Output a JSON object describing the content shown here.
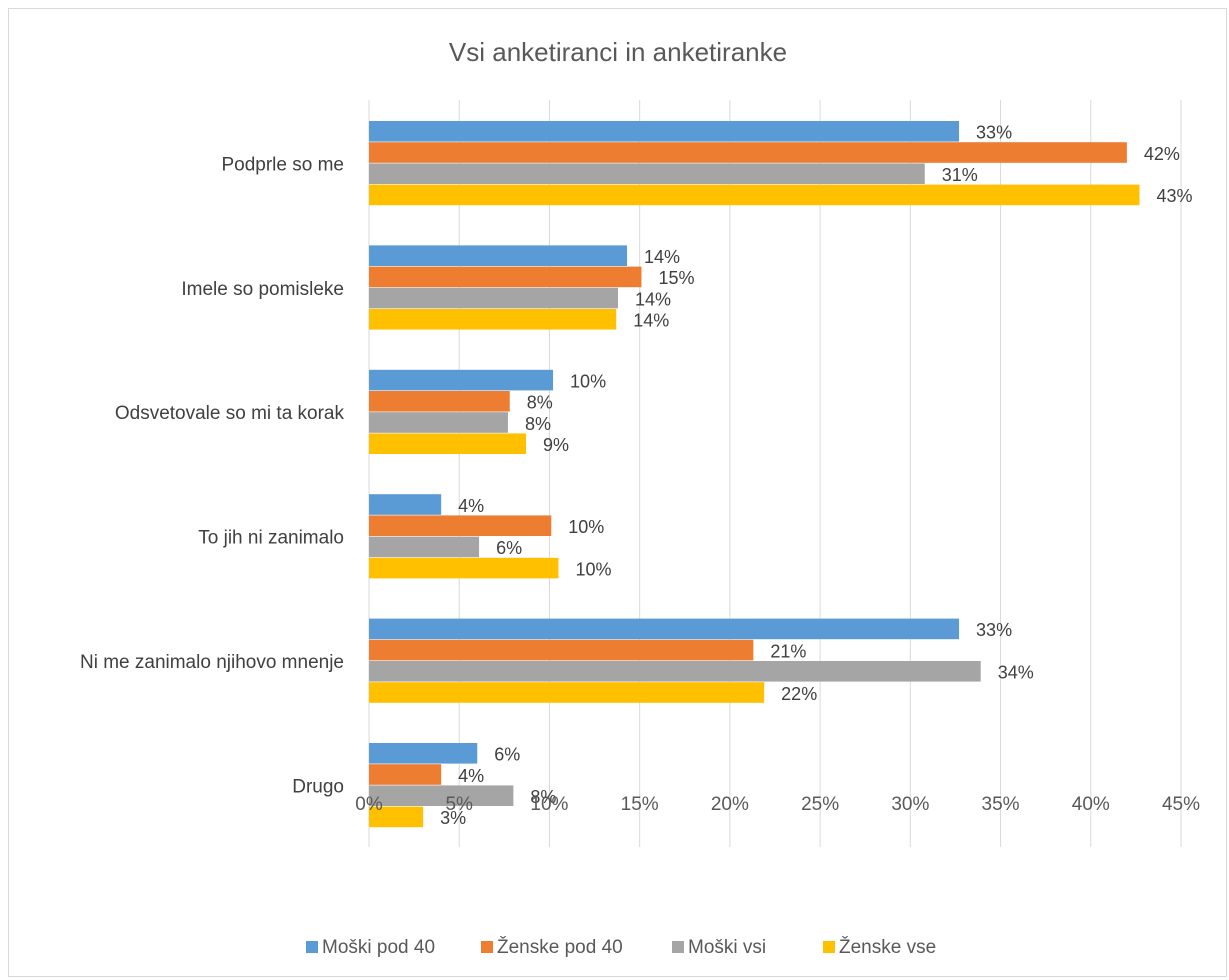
{
  "chart_data": {
    "type": "bar",
    "orientation": "horizontal",
    "title": "Vsi anketiranci in anketiranke",
    "categories": [
      "Podprle so me",
      "Imele so pomisleke",
      "Odsvetovale so mi ta korak",
      "To jih ni zanimalo",
      "Ni me zanimalo njihovo mnenje",
      "Drugo"
    ],
    "series": [
      {
        "name": "Moški pod 40",
        "color": "#5b9bd5",
        "values": [
          32.7,
          14.3,
          10.2,
          4.0,
          32.7,
          6.0
        ],
        "labels": [
          "33%",
          "14%",
          "10%",
          "4%",
          "33%",
          "6%"
        ]
      },
      {
        "name": "Ženske pod 40",
        "color": "#ed7d31",
        "values": [
          42.0,
          15.1,
          7.8,
          10.1,
          21.3,
          4.0
        ],
        "labels": [
          "42%",
          "15%",
          "8%",
          "10%",
          "21%",
          "4%"
        ]
      },
      {
        "name": "Moški vsi",
        "color": "#a5a5a5",
        "values": [
          30.8,
          13.8,
          7.7,
          6.1,
          33.9,
          8.0
        ],
        "labels": [
          "31%",
          "14%",
          "8%",
          "6%",
          "34%",
          "8%"
        ]
      },
      {
        "name": "Ženske vse",
        "color": "#ffc000",
        "values": [
          42.7,
          13.7,
          8.7,
          10.5,
          21.9,
          3.0
        ],
        "labels": [
          "43%",
          "14%",
          "9%",
          "10%",
          "22%",
          "3%"
        ]
      }
    ],
    "xlim": [
      0,
      45
    ],
    "xticks": [
      "0%",
      "5%",
      "10%",
      "15%",
      "20%",
      "25%",
      "30%",
      "35%",
      "40%",
      "45%"
    ],
    "grid": true,
    "legend": "bottom"
  }
}
